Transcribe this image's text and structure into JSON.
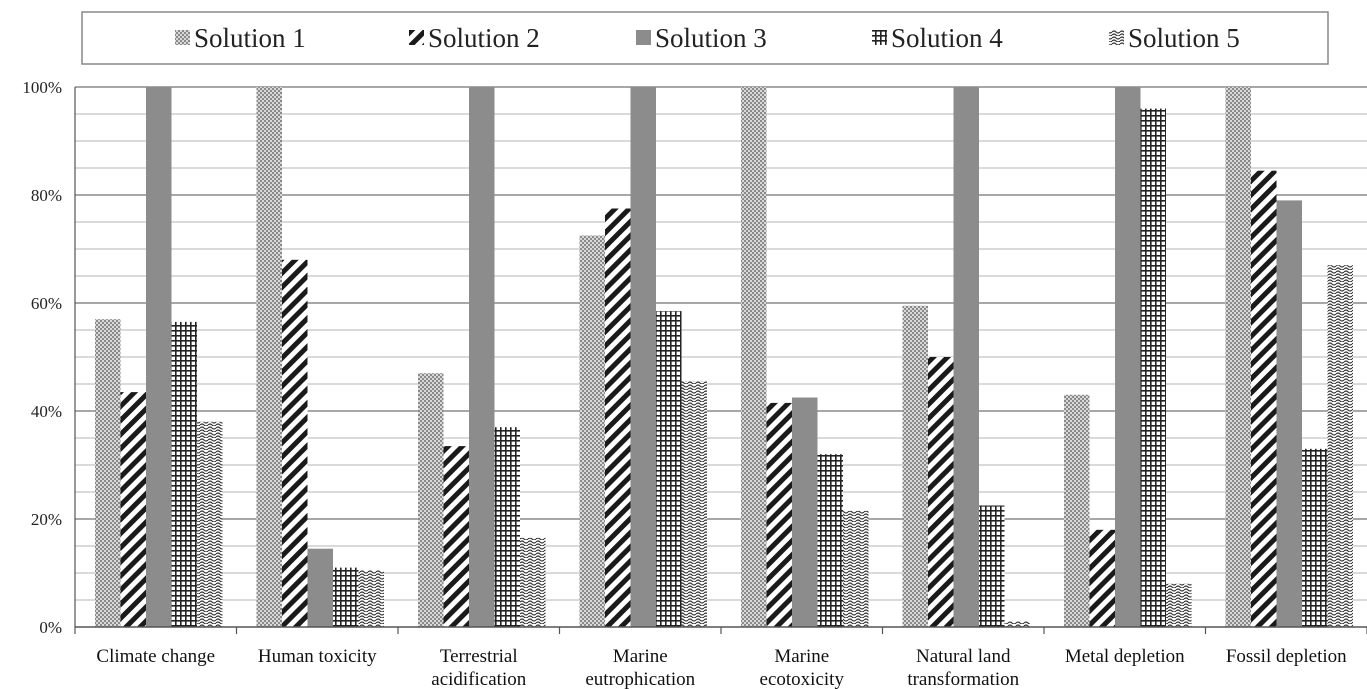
{
  "chart_data": {
    "type": "bar",
    "categories": [
      [
        "Climate change"
      ],
      [
        "Human toxicity"
      ],
      [
        "Terrestrial",
        "acidification"
      ],
      [
        "Marine",
        "eutrophication"
      ],
      [
        "Marine",
        "ecotoxicity"
      ],
      [
        "Natural land",
        "transformation"
      ],
      [
        "Metal depletion"
      ],
      [
        "Fossil depletion"
      ]
    ],
    "series": [
      {
        "name": "Solution 1",
        "pattern": "dots",
        "values": [
          57,
          100,
          47,
          72.5,
          100,
          59.5,
          43,
          100
        ]
      },
      {
        "name": "Solution 2",
        "pattern": "diagonal",
        "values": [
          43.5,
          68,
          33.5,
          77.5,
          41.5,
          50,
          18,
          84.5
        ]
      },
      {
        "name": "Solution 3",
        "pattern": "solid",
        "values": [
          100,
          14.5,
          100,
          100,
          42.5,
          100,
          100,
          79
        ]
      },
      {
        "name": "Solution 4",
        "pattern": "grid",
        "values": [
          56.5,
          11,
          37,
          58.5,
          32,
          22.5,
          96,
          33
        ]
      },
      {
        "name": "Solution 5",
        "pattern": "wave",
        "values": [
          38,
          10.5,
          16.5,
          45.5,
          21.5,
          1,
          8,
          67
        ]
      }
    ],
    "yticks": [
      "0%",
      "20%",
      "40%",
      "60%",
      "80%",
      "100%"
    ],
    "ylim": [
      0,
      100
    ],
    "major_gridlines": [
      20,
      40,
      60,
      80,
      100
    ],
    "minor_gridlines_step": 5,
    "legend_position": "top",
    "colors": {
      "bar": "#7a7a7a",
      "solid": "#8c8c8c",
      "grid": "#9a9a9a",
      "axis": "#555555"
    }
  }
}
